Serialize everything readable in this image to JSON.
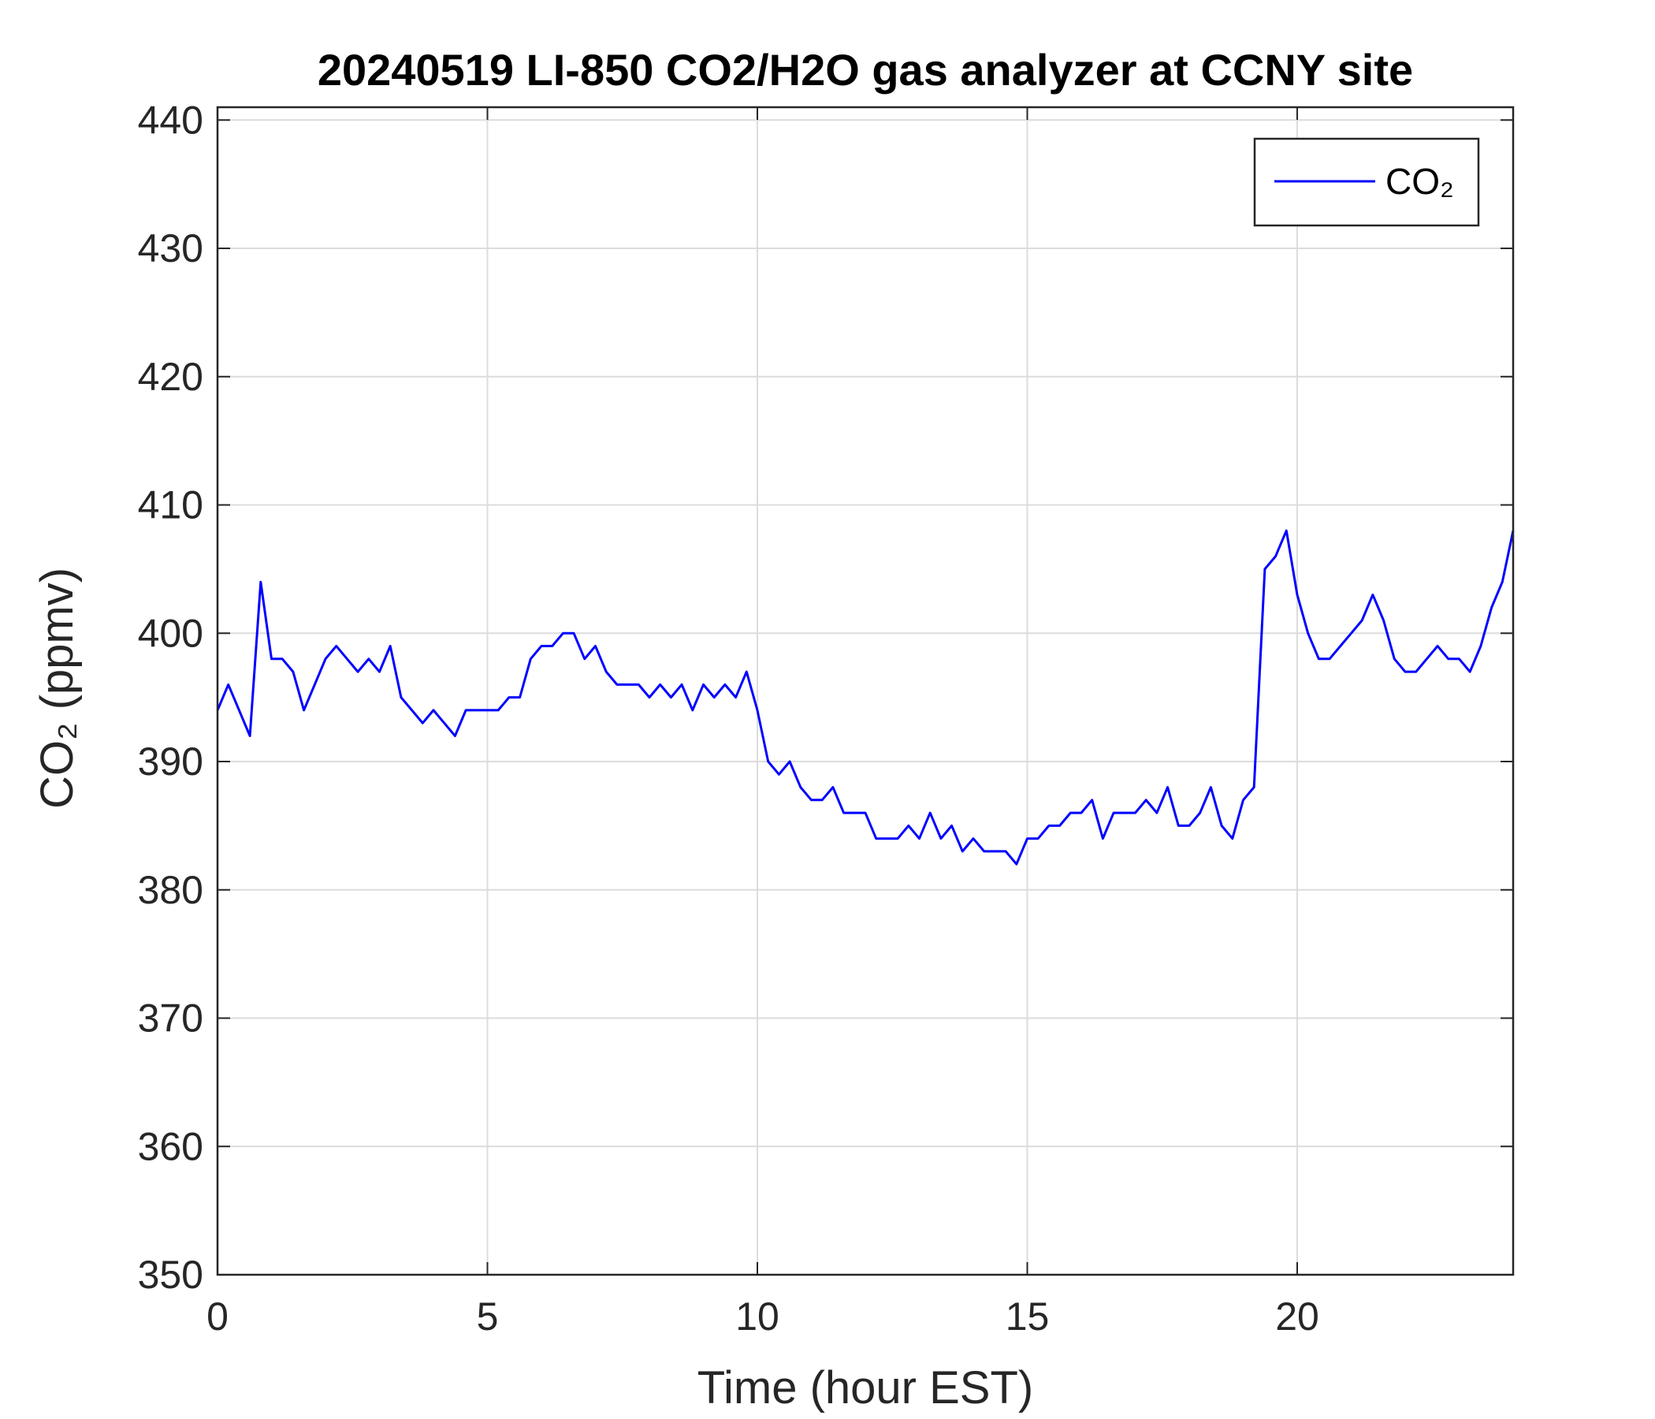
{
  "chart_data": {
    "type": "line",
    "title": "20240519 LI-850 CO2/H2O gas analyzer at CCNY site",
    "x_label": "Time (hour EST)",
    "y_label": "CO₂ (ppmv)",
    "xlim": [
      0,
      24
    ],
    "xticks": [
      0,
      5,
      10,
      15,
      20
    ],
    "ylim": [
      350,
      441
    ],
    "yticks": [
      350,
      360,
      370,
      380,
      390,
      400,
      410,
      420,
      430,
      440
    ],
    "grid": true,
    "legend": "top-right",
    "x": [
      0,
      0.2,
      0.4,
      0.6,
      0.8,
      1,
      1.2,
      1.4,
      1.6,
      1.8,
      2,
      2.2,
      2.4,
      2.6,
      2.8,
      3,
      3.2,
      3.4,
      3.6,
      3.8,
      4,
      4.2,
      4.4,
      4.6,
      4.8,
      5,
      5.2,
      5.4,
      5.6,
      5.8,
      6,
      6.2,
      6.4,
      6.6,
      6.8,
      7,
      7.2,
      7.4,
      7.6,
      7.8,
      8,
      8.2,
      8.4,
      8.6,
      8.8,
      9,
      9.2,
      9.4,
      9.6,
      9.8,
      10,
      10.2,
      10.4,
      10.6,
      10.8,
      11,
      11.2,
      11.4,
      11.6,
      11.8,
      12,
      12.2,
      12.4,
      12.6,
      12.8,
      13,
      13.2,
      13.4,
      13.6,
      13.8,
      14,
      14.2,
      14.4,
      14.6,
      14.8,
      15,
      15.2,
      15.4,
      15.6,
      15.8,
      16,
      16.2,
      16.4,
      16.6,
      16.8,
      17,
      17.2,
      17.4,
      17.6,
      17.8,
      18,
      18.2,
      18.4,
      18.6,
      18.8,
      19,
      19.2,
      19.4,
      19.6,
      19.8,
      20,
      20.2,
      20.4,
      20.6,
      20.8,
      21,
      21.2,
      21.4,
      21.6,
      21.8,
      22,
      22.2,
      22.4,
      22.6,
      22.8,
      23,
      23.2,
      23.4,
      23.6,
      23.8,
      24
    ],
    "series": [
      {
        "name": "CO₂",
        "color": "#0000ff",
        "values": [
          394,
          396,
          394,
          392,
          404,
          398,
          398,
          397,
          394,
          396,
          398,
          399,
          398,
          397,
          398,
          397,
          399,
          395,
          394,
          393,
          394,
          393,
          392,
          394,
          394,
          394,
          394,
          395,
          395,
          398,
          399,
          399,
          400,
          400,
          398,
          399,
          397,
          396,
          396,
          396,
          395,
          396,
          395,
          396,
          394,
          396,
          395,
          396,
          395,
          397,
          394,
          390,
          389,
          390,
          388,
          387,
          387,
          388,
          386,
          386,
          386,
          384,
          384,
          384,
          385,
          384,
          386,
          384,
          385,
          383,
          384,
          383,
          383,
          383,
          382,
          384,
          384,
          385,
          385,
          386,
          386,
          387,
          384,
          386,
          386,
          386,
          387,
          386,
          388,
          385,
          385,
          386,
          388,
          385,
          384,
          387,
          388,
          405,
          406,
          408,
          403,
          400,
          398,
          398,
          399,
          400,
          401,
          403,
          401,
          398,
          397,
          397,
          398,
          399,
          398,
          398,
          397,
          399,
          402,
          404,
          408
        ]
      }
    ]
  }
}
